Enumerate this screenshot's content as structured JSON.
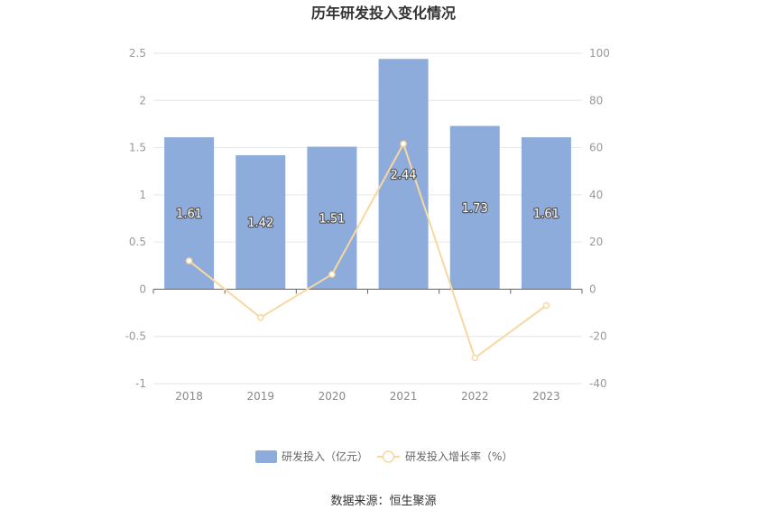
{
  "chart_data": {
    "type": "bar",
    "title": "历年研发投入变化情况",
    "categories": [
      "2018",
      "2019",
      "2020",
      "2021",
      "2022",
      "2023"
    ],
    "series": [
      {
        "name": "研发投入（亿元）",
        "type": "bar",
        "axis": "left",
        "values": [
          1.61,
          1.42,
          1.51,
          2.44,
          1.73,
          1.61
        ],
        "labels": [
          "1.61",
          "1.42",
          "1.51",
          "2.44",
          "1.73",
          "1.61"
        ],
        "color": "#8eacdb"
      },
      {
        "name": "研发投入增长率（%）",
        "type": "line",
        "axis": "right",
        "values": [
          12,
          -12,
          6.3,
          61.6,
          -29.1,
          -6.9
        ],
        "color": "#f8d8a0"
      }
    ],
    "y_left": {
      "min": -1,
      "max": 2.5,
      "ticks": [
        "2.5",
        "2",
        "1.5",
        "1",
        "0.5",
        "0",
        "-0.5",
        "-1"
      ]
    },
    "y_right": {
      "min": -40,
      "max": 100,
      "ticks": [
        "100",
        "80",
        "60",
        "40",
        "20",
        "0",
        "-20",
        "-40"
      ]
    },
    "grid": true,
    "legend": "bottom",
    "source": "数据来源：恒生聚源"
  }
}
